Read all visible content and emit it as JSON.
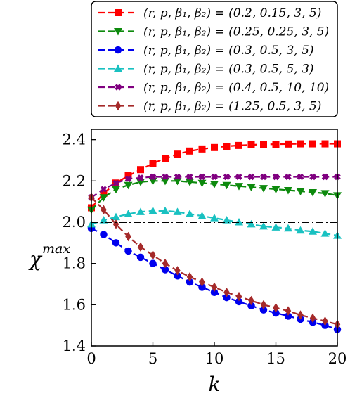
{
  "chart_data": {
    "type": "line",
    "title": "",
    "xlabel": "k",
    "ylabel": "χ",
    "ylabel_superscript": "max",
    "xlim": [
      0,
      20
    ],
    "ylim": [
      1.4,
      2.45
    ],
    "xticks": [
      0,
      5,
      10,
      15,
      20
    ],
    "yticks": [
      1.4,
      1.6,
      1.8,
      2.0,
      2.2,
      2.4
    ],
    "xtick_labels": [
      "0",
      "5",
      "10",
      "15",
      "20"
    ],
    "ytick_labels": [
      "1.4",
      "1.6",
      "1.8",
      "2.0",
      "2.2",
      "2.4"
    ],
    "grid": false,
    "legend_position": "top",
    "reference_line": {
      "y": 2.0,
      "style": "dash-dot",
      "color": "#000000"
    },
    "x": [
      0,
      1,
      2,
      3,
      4,
      5,
      6,
      7,
      8,
      9,
      10,
      11,
      12,
      13,
      14,
      15,
      16,
      17,
      18,
      19,
      20
    ],
    "series": [
      {
        "name": "(r, p, β₁, β₂) = (0.2, 0.15, 3, 5)",
        "color": "#ff0000",
        "marker": "square",
        "values": [
          2.07,
          2.14,
          2.19,
          2.225,
          2.255,
          2.285,
          2.31,
          2.33,
          2.345,
          2.355,
          2.362,
          2.368,
          2.372,
          2.375,
          2.377,
          2.378,
          2.379,
          2.38,
          2.38,
          2.38,
          2.38
        ]
      },
      {
        "name": "(r, p, β₁, β₂) = (0.25, 0.25, 3, 5)",
        "color": "#0d8a0d",
        "marker": "triangle-down",
        "values": [
          2.06,
          2.12,
          2.16,
          2.18,
          2.195,
          2.2,
          2.2,
          2.2,
          2.195,
          2.19,
          2.185,
          2.18,
          2.175,
          2.17,
          2.165,
          2.16,
          2.155,
          2.15,
          2.145,
          2.14,
          2.13
        ]
      },
      {
        "name": "(r, p, β₁, β₂) = (0.3, 0.5, 3, 5)",
        "color": "#0000ee",
        "marker": "circle",
        "values": [
          1.97,
          1.94,
          1.9,
          1.86,
          1.83,
          1.8,
          1.77,
          1.74,
          1.71,
          1.685,
          1.66,
          1.635,
          1.615,
          1.595,
          1.575,
          1.56,
          1.545,
          1.53,
          1.515,
          1.5,
          1.48
        ]
      },
      {
        "name": "(r, p, β₁, β₂) = (0.3, 0.5, 5, 3)",
        "color": "#19c1c1",
        "marker": "triangle-up",
        "values": [
          1.99,
          2.01,
          2.025,
          2.04,
          2.05,
          2.055,
          2.055,
          2.05,
          2.04,
          2.03,
          2.02,
          2.01,
          2.0,
          1.99,
          1.98,
          1.975,
          1.97,
          1.96,
          1.955,
          1.945,
          1.935
        ]
      },
      {
        "name": "(r, p, β₁, β₂) = (0.4, 0.5, 10, 10)",
        "color": "#800080",
        "marker": "x",
        "values": [
          2.12,
          2.16,
          2.19,
          2.21,
          2.215,
          2.22,
          2.22,
          2.22,
          2.22,
          2.22,
          2.22,
          2.22,
          2.22,
          2.22,
          2.22,
          2.22,
          2.22,
          2.22,
          2.22,
          2.22,
          2.22
        ]
      },
      {
        "name": "(r, p, β₁, β₂) = (1.25, 0.5, 3, 5)",
        "color": "#a52a2a",
        "marker": "diamond",
        "values": [
          2.12,
          2.06,
          1.99,
          1.93,
          1.88,
          1.84,
          1.8,
          1.765,
          1.735,
          1.71,
          1.685,
          1.66,
          1.64,
          1.62,
          1.6,
          1.585,
          1.57,
          1.55,
          1.535,
          1.52,
          1.505
        ]
      }
    ]
  }
}
